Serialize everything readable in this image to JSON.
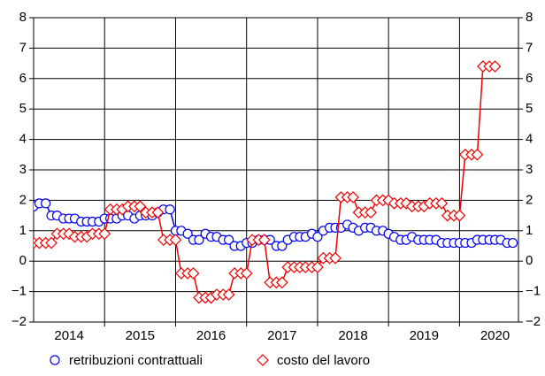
{
  "chart_data": {
    "type": "line",
    "x": [
      2014.0,
      2014.08,
      2014.17,
      2014.25,
      2014.33,
      2014.42,
      2014.5,
      2014.58,
      2014.67,
      2014.75,
      2014.83,
      2014.92,
      2015.0,
      2015.08,
      2015.17,
      2015.25,
      2015.33,
      2015.42,
      2015.5,
      2015.58,
      2015.67,
      2015.75,
      2015.83,
      2015.92,
      2016.0,
      2016.08,
      2016.17,
      2016.25,
      2016.33,
      2016.42,
      2016.5,
      2016.58,
      2016.67,
      2016.75,
      2016.83,
      2016.92,
      2017.0,
      2017.08,
      2017.17,
      2017.25,
      2017.33,
      2017.42,
      2017.5,
      2017.58,
      2017.67,
      2017.75,
      2017.83,
      2017.92,
      2018.0,
      2018.08,
      2018.17,
      2018.25,
      2018.33,
      2018.42,
      2018.5,
      2018.58,
      2018.67,
      2018.75,
      2018.83,
      2018.92,
      2019.0,
      2019.08,
      2019.17,
      2019.25,
      2019.33,
      2019.42,
      2019.5,
      2019.58,
      2019.67,
      2019.75,
      2019.83,
      2019.92,
      2020.0,
      2020.08,
      2020.17,
      2020.25,
      2020.33,
      2020.42,
      2020.5,
      2020.58,
      2020.67,
      2020.75
    ],
    "series": [
      {
        "name": "retribuzioni contrattuali",
        "color": "#0000ee",
        "marker": "circle",
        "values": [
          1.8,
          1.9,
          1.9,
          1.5,
          1.5,
          1.4,
          1.4,
          1.4,
          1.3,
          1.3,
          1.3,
          1.3,
          1.4,
          1.4,
          1.4,
          1.5,
          1.5,
          1.4,
          1.5,
          1.5,
          1.5,
          1.6,
          1.7,
          1.7,
          1.0,
          1.0,
          0.9,
          0.7,
          0.7,
          0.9,
          0.8,
          0.8,
          0.7,
          0.7,
          0.5,
          0.5,
          0.6,
          0.6,
          0.7,
          0.7,
          0.7,
          0.5,
          0.5,
          0.7,
          0.8,
          0.8,
          0.8,
          0.9,
          0.8,
          1.0,
          1.1,
          1.1,
          1.1,
          1.2,
          1.1,
          1.0,
          1.1,
          1.1,
          1.0,
          1.0,
          0.9,
          0.8,
          0.7,
          0.7,
          0.8,
          0.7,
          0.7,
          0.7,
          0.7,
          0.6,
          0.6,
          0.6,
          0.6,
          0.6,
          0.6,
          0.7,
          0.7,
          0.7,
          0.7,
          0.7,
          0.6,
          0.6
        ]
      },
      {
        "name": "costo del lavoro",
        "color": "#ee0000",
        "marker": "diamond",
        "values": [
          0.6,
          0.6,
          0.6,
          0.6,
          0.9,
          0.9,
          0.9,
          0.8,
          0.8,
          0.8,
          0.9,
          0.9,
          0.9,
          1.7,
          1.7,
          1.7,
          1.8,
          1.8,
          1.8,
          1.6,
          1.6,
          1.6,
          0.7,
          0.7,
          0.7,
          -0.4,
          -0.4,
          -0.4,
          -1.2,
          -1.2,
          -1.2,
          -1.1,
          -1.1,
          -1.1,
          -0.4,
          -0.4,
          -0.4,
          0.7,
          0.7,
          0.7,
          -0.7,
          -0.7,
          -0.7,
          -0.2,
          -0.2,
          -0.2,
          -0.2,
          -0.2,
          -0.2,
          0.1,
          0.1,
          0.1,
          2.1,
          2.1,
          2.1,
          1.6,
          1.6,
          1.6,
          2.0,
          2.0,
          2.0,
          1.9,
          1.9,
          1.9,
          1.8,
          1.8,
          1.8,
          1.9,
          1.9,
          1.9,
          1.5,
          1.5,
          1.5,
          3.5,
          3.5,
          3.5,
          6.4,
          6.4,
          6.4,
          null,
          null,
          null
        ]
      }
    ],
    "xlim": [
      2014.0,
      2020.83
    ],
    "xticks": [
      {
        "value": 2014.5,
        "label": "2014"
      },
      {
        "value": 2015.5,
        "label": "2015"
      },
      {
        "value": 2016.5,
        "label": "2016"
      },
      {
        "value": 2017.5,
        "label": "2017"
      },
      {
        "value": 2018.5,
        "label": "2018"
      },
      {
        "value": 2019.5,
        "label": "2019"
      },
      {
        "value": 2020.5,
        "label": "2020"
      }
    ],
    "xgrid": [
      2015,
      2016,
      2017,
      2018,
      2019,
      2020
    ],
    "ylim": [
      -2,
      8
    ],
    "yticks": [
      {
        "value": -2,
        "label": "−2"
      },
      {
        "value": -1,
        "label": "−1"
      },
      0,
      1,
      2,
      3,
      4,
      5,
      6,
      7,
      8
    ],
    "grid": true
  }
}
